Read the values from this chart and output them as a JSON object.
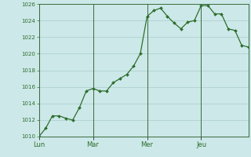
{
  "background_color": "#cce8e8",
  "line_color": "#2d6e2d",
  "marker_color": "#2d6e2d",
  "grid_color": "#aacccc",
  "vline_color": "#3a6a3a",
  "ylabel_color": "#2d6e2d",
  "xlabel_color": "#2d6e2d",
  "ylim": [
    1010,
    1026
  ],
  "yticks": [
    1010,
    1012,
    1014,
    1016,
    1018,
    1020,
    1022,
    1024,
    1026
  ],
  "day_labels": [
    "Lun",
    "Mar",
    "Mer",
    "Jeu"
  ],
  "day_positions": [
    0,
    8,
    16,
    24
  ],
  "x_values": [
    0,
    1,
    2,
    3,
    4,
    5,
    6,
    7,
    8,
    9,
    10,
    11,
    12,
    13,
    14,
    15,
    16,
    17,
    18,
    19,
    20,
    21,
    22,
    23,
    24,
    25,
    26,
    27,
    28,
    29,
    30,
    31
  ],
  "y_values": [
    1010.0,
    1011.0,
    1012.5,
    1012.5,
    1012.2,
    1012.0,
    1013.5,
    1015.5,
    1015.8,
    1015.5,
    1015.5,
    1016.5,
    1017.0,
    1017.5,
    1018.5,
    1020.0,
    1024.5,
    1025.2,
    1025.5,
    1024.5,
    1023.7,
    1023.0,
    1023.8,
    1024.0,
    1025.8,
    1025.8,
    1024.8,
    1024.8,
    1023.0,
    1022.8,
    1021.0,
    1020.8
  ]
}
